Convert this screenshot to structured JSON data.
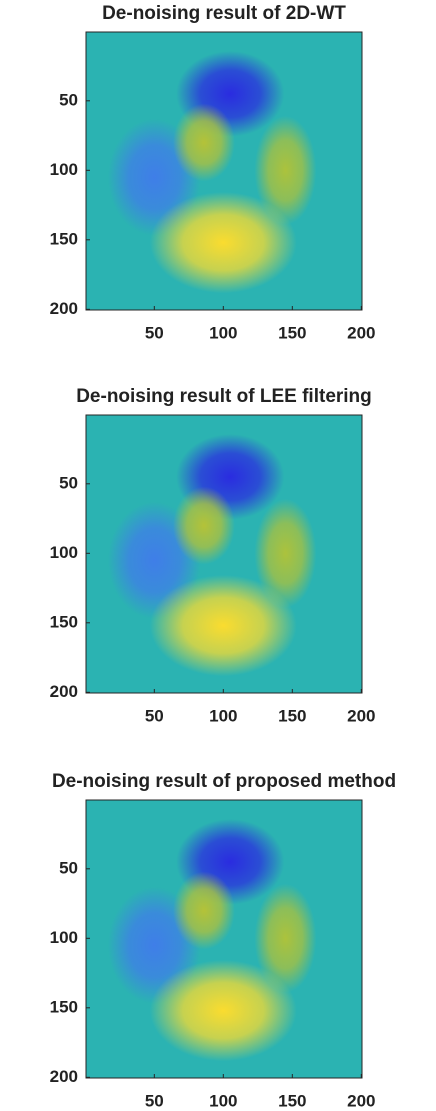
{
  "chart_data": [
    {
      "type": "image",
      "title": "De-noising result of 2D-WT",
      "background": "#2bb3b2",
      "xlim": [
        0.5,
        200.5
      ],
      "ylim": [
        0.5,
        200.5
      ],
      "y_reversed": true,
      "xticks": [
        50,
        100,
        150,
        200
      ],
      "yticks": [
        50,
        100,
        150,
        200
      ],
      "blobs": [
        {
          "x": 105,
          "y": 45,
          "rx": 28,
          "ry": 22,
          "color": "#2a2ce0"
        },
        {
          "x": 50,
          "y": 105,
          "rx": 24,
          "ry": 30,
          "color": "#3f7ee8"
        },
        {
          "x": 86,
          "y": 80,
          "rx": 16,
          "ry": 20,
          "color": "#b4c238"
        },
        {
          "x": 145,
          "y": 100,
          "rx": 16,
          "ry": 28,
          "color": "#acc23c"
        },
        {
          "x": 100,
          "y": 152,
          "rx": 38,
          "ry": 26,
          "color": "#fadc2f"
        }
      ]
    },
    {
      "type": "image",
      "title": "De-noising result of LEE filtering",
      "background": "#2bb3b2",
      "xlim": [
        0.5,
        200.5
      ],
      "ylim": [
        0.5,
        200.5
      ],
      "y_reversed": true,
      "xticks": [
        50,
        100,
        150,
        200
      ],
      "yticks": [
        50,
        100,
        150,
        200
      ],
      "blobs": [
        {
          "x": 105,
          "y": 45,
          "rx": 28,
          "ry": 22,
          "color": "#2a2ce0"
        },
        {
          "x": 50,
          "y": 105,
          "rx": 24,
          "ry": 30,
          "color": "#3f7ee8"
        },
        {
          "x": 86,
          "y": 80,
          "rx": 16,
          "ry": 20,
          "color": "#b4c238"
        },
        {
          "x": 145,
          "y": 100,
          "rx": 16,
          "ry": 28,
          "color": "#acc23c"
        },
        {
          "x": 100,
          "y": 152,
          "rx": 38,
          "ry": 26,
          "color": "#fadc2f"
        }
      ]
    },
    {
      "type": "image",
      "title": "De-noising result of proposed method",
      "background": "#2bb3b2",
      "xlim": [
        0.5,
        200.5
      ],
      "ylim": [
        0.5,
        200.5
      ],
      "y_reversed": true,
      "xticks": [
        50,
        100,
        150,
        200
      ],
      "yticks": [
        50,
        100,
        150,
        200
      ],
      "blobs": [
        {
          "x": 105,
          "y": 45,
          "rx": 28,
          "ry": 22,
          "color": "#2a2ce0"
        },
        {
          "x": 50,
          "y": 105,
          "rx": 24,
          "ry": 30,
          "color": "#3f7ee8"
        },
        {
          "x": 86,
          "y": 80,
          "rx": 16,
          "ry": 20,
          "color": "#b4c238"
        },
        {
          "x": 145,
          "y": 100,
          "rx": 16,
          "ry": 28,
          "color": "#acc23c"
        },
        {
          "x": 100,
          "y": 152,
          "rx": 38,
          "ry": 26,
          "color": "#fadc2f"
        }
      ]
    }
  ]
}
